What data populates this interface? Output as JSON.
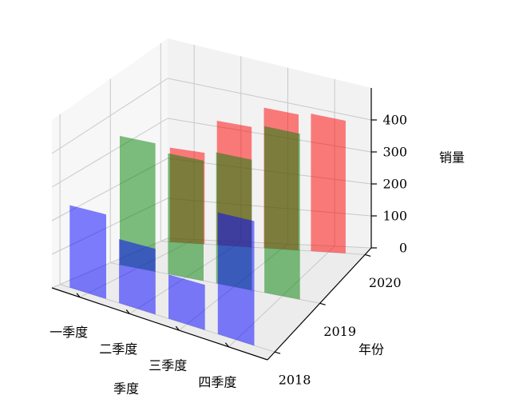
{
  "chart_data": {
    "type": "bar3d",
    "xlabel": "季度",
    "ylabel": "年份",
    "zlabel": "销量",
    "categories": [
      "一季度",
      "二季度",
      "三季度",
      "四季度"
    ],
    "series": [
      {
        "name": "2018",
        "color": "#0000ff",
        "values": [
          240,
          180,
          120,
          320
        ]
      },
      {
        "name": "2019",
        "color": "#008000",
        "values": [
          350,
          330,
          360,
          460
        ]
      },
      {
        "name": "2020",
        "color": "#ff0000",
        "values": [
          240,
          330,
          390,
          400
        ]
      }
    ],
    "zlim": [
      0,
      500
    ],
    "zticks": [
      0,
      100,
      200,
      300,
      400
    ],
    "grid": true
  }
}
